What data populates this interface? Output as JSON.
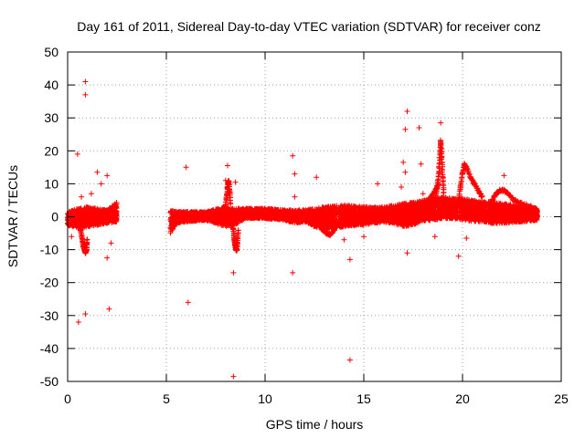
{
  "chart_data": {
    "type": "scatter",
    "title": "Day 161 of 2011, Sidereal Day-to-day VTEC variation (SDTVAR) for receiver conz",
    "xlabel": "GPS time / hours",
    "ylabel": "SDTVAR / TECUs",
    "xlim": [
      0,
      25
    ],
    "ylim": [
      -50,
      50
    ],
    "xticks": [
      0,
      5,
      10,
      15,
      20,
      25
    ],
    "xtick_labels": [
      "0",
      "5",
      "10",
      "15",
      "20",
      "25"
    ],
    "yticks": [
      50,
      40,
      30,
      20,
      10,
      0,
      -10,
      -20,
      -30,
      -40,
      -50
    ],
    "ytick_labels": [
      "50",
      "40",
      "30",
      "20",
      "10",
      "0",
      "-10",
      "-20",
      "-30",
      "-40",
      "-50"
    ],
    "grid": true,
    "marker": "+",
    "color": "#ff0000",
    "series": [
      {
        "name": "SDTVAR",
        "dense_band": [
          [
            0.0,
            -2.5,
            1.5
          ],
          [
            0.5,
            -3.5,
            2.5
          ],
          [
            1.0,
            -3,
            3
          ],
          [
            1.5,
            -2.5,
            2.5
          ],
          [
            2.0,
            -2,
            2
          ],
          [
            2.5,
            -1.5,
            4.5
          ],
          [
            5.2,
            -5,
            2
          ],
          [
            5.5,
            -2,
            1.5
          ],
          [
            6.0,
            -1.5,
            1.5
          ],
          [
            7.0,
            -1,
            1.5
          ],
          [
            8.0,
            -3,
            3
          ],
          [
            8.5,
            -2.5,
            2.5
          ],
          [
            9.0,
            -0.5,
            2.5
          ],
          [
            10.0,
            -0.5,
            2.5
          ],
          [
            11.0,
            -1,
            2
          ],
          [
            11.5,
            -2,
            2
          ],
          [
            12.0,
            -1.5,
            2
          ],
          [
            12.5,
            -3,
            2.5
          ],
          [
            13.0,
            -4,
            3
          ],
          [
            14.0,
            -3,
            3.5
          ],
          [
            15.0,
            -2.5,
            3
          ],
          [
            15.5,
            -2,
            3
          ],
          [
            16.0,
            -1.5,
            3
          ],
          [
            16.5,
            -2,
            3.5
          ],
          [
            17.0,
            -3,
            4
          ],
          [
            17.5,
            -2.5,
            4.5
          ],
          [
            18.0,
            -1.5,
            5
          ],
          [
            18.5,
            -1,
            5.5
          ],
          [
            19.0,
            -0.5,
            6
          ],
          [
            19.5,
            -0.5,
            5.5
          ],
          [
            20.0,
            -1,
            5.5
          ],
          [
            20.5,
            -1.5,
            5
          ],
          [
            21.0,
            -1.5,
            4.5
          ],
          [
            21.5,
            -2,
            4.5
          ],
          [
            22.0,
            -2,
            4
          ],
          [
            23.0,
            -1.5,
            3.5
          ],
          [
            23.8,
            -1,
            2.5
          ]
        ],
        "spike_traces": [
          [
            [
              0.6,
              -1
            ],
            [
              0.65,
              -4
            ],
            [
              0.75,
              -7
            ],
            [
              0.8,
              -9
            ],
            [
              0.85,
              -10
            ],
            [
              0.9,
              -11
            ],
            [
              0.95,
              -10
            ],
            [
              1.0,
              -7
            ]
          ],
          [
            [
              8.3,
              -1
            ],
            [
              8.4,
              -4
            ],
            [
              8.45,
              -7
            ],
            [
              8.5,
              -9
            ],
            [
              8.55,
              -10.5
            ],
            [
              8.6,
              -8
            ],
            [
              8.65,
              -4
            ]
          ],
          [
            [
              7.9,
              0
            ],
            [
              8.0,
              3
            ],
            [
              8.05,
              6
            ],
            [
              8.1,
              9
            ],
            [
              8.15,
              11
            ],
            [
              8.2,
              8
            ],
            [
              8.25,
              4
            ]
          ],
          [
            [
              18.6,
              4
            ],
            [
              18.7,
              8
            ],
            [
              18.8,
              13
            ],
            [
              18.85,
              18
            ],
            [
              18.9,
              23
            ],
            [
              18.95,
              18
            ],
            [
              19.0,
              12
            ],
            [
              19.05,
              7
            ]
          ],
          [
            [
              19.8,
              4
            ],
            [
              19.9,
              9
            ],
            [
              20.0,
              13
            ],
            [
              20.1,
              16
            ],
            [
              20.2,
              15
            ],
            [
              20.4,
              12
            ],
            [
              20.6,
              10
            ],
            [
              20.8,
              8
            ],
            [
              21.0,
              6
            ]
          ],
          [
            [
              21.3,
              3
            ],
            [
              21.5,
              5
            ],
            [
              21.7,
              7
            ],
            [
              21.9,
              8
            ],
            [
              22.1,
              8
            ],
            [
              22.3,
              7
            ],
            [
              22.6,
              5
            ],
            [
              23.0,
              4
            ],
            [
              23.5,
              3
            ]
          ],
          [
            [
              12.3,
              2
            ],
            [
              12.5,
              0
            ],
            [
              12.7,
              -2
            ],
            [
              12.9,
              -4
            ],
            [
              13.1,
              -5
            ],
            [
              13.3,
              -5.5
            ],
            [
              13.5,
              -4
            ],
            [
              13.7,
              -2
            ]
          ],
          [
            [
              18.0,
              2
            ],
            [
              18.2,
              4
            ],
            [
              18.4,
              6
            ],
            [
              18.6,
              8
            ],
            [
              18.8,
              10
            ]
          ]
        ],
        "outliers": [
          [
            0.9,
            41
          ],
          [
            0.9,
            37
          ],
          [
            0.5,
            19
          ],
          [
            1.5,
            13.5
          ],
          [
            2.0,
            12.5
          ],
          [
            1.7,
            10
          ],
          [
            0.7,
            6
          ],
          [
            1.2,
            7
          ],
          [
            0.55,
            -32
          ],
          [
            0.9,
            -29.5
          ],
          [
            2.1,
            -28
          ],
          [
            2.0,
            -12.5
          ],
          [
            2.2,
            -8
          ],
          [
            0.2,
            -6
          ],
          [
            6.0,
            15
          ],
          [
            6.1,
            -26
          ],
          [
            8.1,
            15.5
          ],
          [
            8.5,
            10.5
          ],
          [
            8.0,
            11
          ],
          [
            8.4,
            -17
          ],
          [
            8.4,
            -48.5
          ],
          [
            11.4,
            18.5
          ],
          [
            11.5,
            13
          ],
          [
            11.4,
            -17
          ],
          [
            11.5,
            6
          ],
          [
            12.6,
            12
          ],
          [
            14.3,
            -43.5
          ],
          [
            14.3,
            -13
          ],
          [
            14.0,
            -7
          ],
          [
            15.0,
            -6
          ],
          [
            17.2,
            32
          ],
          [
            17.1,
            26.5
          ],
          [
            17.0,
            16.5
          ],
          [
            17.1,
            13.5
          ],
          [
            17.8,
            27
          ],
          [
            17.9,
            16
          ],
          [
            18.9,
            28.5
          ],
          [
            17.2,
            -11
          ],
          [
            18.0,
            7
          ],
          [
            18.6,
            -6
          ],
          [
            19.8,
            -12
          ],
          [
            20.2,
            -6.5
          ],
          [
            22.1,
            12.5
          ],
          [
            16.9,
            9
          ],
          [
            15.7,
            10
          ]
        ]
      }
    ]
  }
}
